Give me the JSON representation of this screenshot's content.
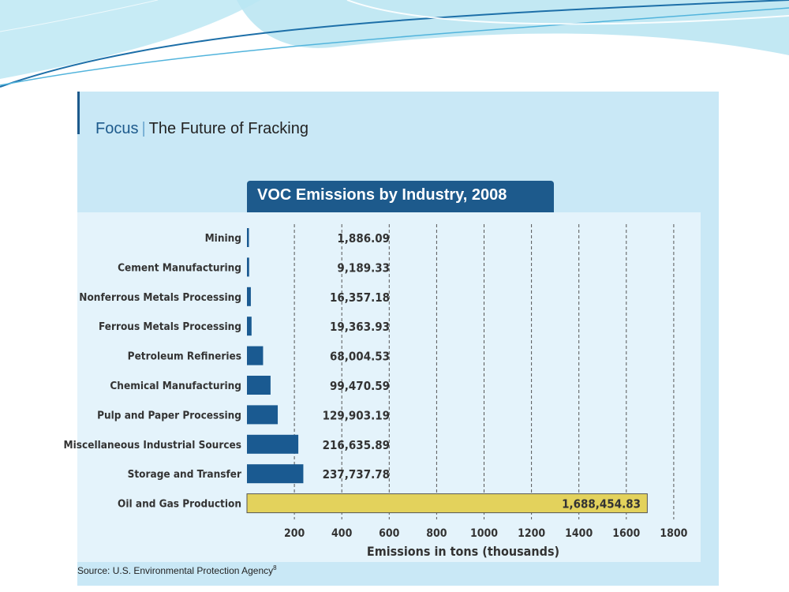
{
  "header": {
    "focus_label": "Focus",
    "separator": "|",
    "subtitle": "The Future of Fracking"
  },
  "footer": {
    "source_text": "Source: U.S. Environmental Protection Agency",
    "source_note": "8"
  },
  "colors": {
    "bar": "#1a5a91",
    "highlight_bar": "#e3d25c",
    "title_bg": "#1d5a8c",
    "panel_bg": "#c9e8f6",
    "plot_bg": "#e4f3fb"
  },
  "chart_data": {
    "type": "bar",
    "orientation": "horizontal",
    "title": "VOC Emissions by Industry, 2008",
    "xlabel": "Emissions in tons (thousands)",
    "ylabel": "",
    "xlim": [
      0,
      1800
    ],
    "xticks": [
      "200",
      "400",
      "600",
      "800",
      "1000",
      "1200",
      "1400",
      "1600",
      "1800"
    ],
    "grid": "vertical dashed",
    "categories": [
      "Mining",
      "Cement Manufacturing",
      "Nonferrous Metals Processing",
      "Ferrous Metals Processing",
      "Petroleum Refineries",
      "Chemical Manufacturing",
      "Pulp and Paper Processing",
      "Miscellaneous Industrial Sources",
      "Storage and Transfer",
      "Oil and Gas Production"
    ],
    "values": [
      1886.09,
      9189.33,
      16357.18,
      19363.93,
      68004.53,
      99470.59,
      129903.19,
      216635.89,
      237737.78,
      1688454.83
    ],
    "value_labels": [
      "1,886.09",
      "9,189.33",
      "16,357.18",
      "19,363.93",
      "68,004.53",
      "99,470.59",
      "129,903.19",
      "216,635.89",
      "237,737.78",
      "1,688,454.83"
    ],
    "value_units": "tons",
    "highlight_category": "Oil and Gas Production"
  }
}
